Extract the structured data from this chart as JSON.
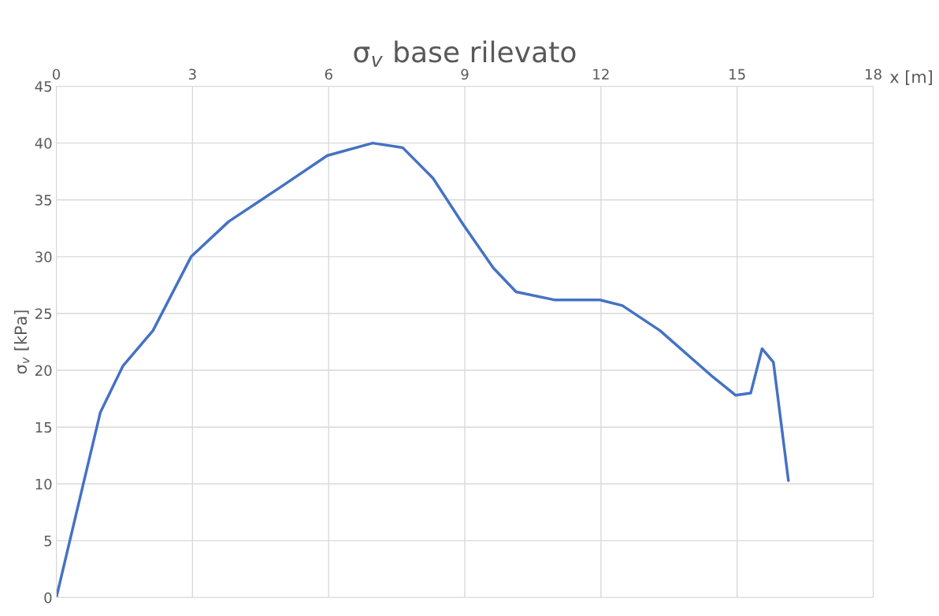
{
  "chart_data": {
    "type": "line",
    "title": "σ$_{v}$ base rilevato",
    "xlabel": "x [m]",
    "ylabel": "σ$_{v}$ [kPa]",
    "x": [
      0,
      0.6,
      0.97,
      1.47,
      2.13,
      2.97,
      3.8,
      4.97,
      5.97,
      6.97,
      7.63,
      8.3,
      8.97,
      9.63,
      10.13,
      10.97,
      11.97,
      12.47,
      13.3,
      14.47,
      14.97,
      15.3,
      15.55,
      15.8,
      16.13
    ],
    "series": [
      {
        "color": "#4472c4",
        "values": [
          0,
          10.1,
          16.3,
          20.4,
          23.5,
          30,
          33.1,
          36.2,
          38.9,
          40.0,
          39.6,
          36.9,
          32.8,
          29.0,
          26.9,
          26.2,
          26.2,
          25.7,
          23.5,
          19.4,
          17.8,
          18.0,
          21.9,
          20.7,
          10.3
        ]
      }
    ],
    "xlim": [
      0,
      18
    ],
    "xticks": [
      0,
      3,
      6,
      9,
      12,
      15,
      18
    ],
    "ylim": [
      0,
      45
    ],
    "yticks": [
      0,
      5,
      10,
      15,
      20,
      25,
      30,
      35,
      40,
      45
    ],
    "grid": true,
    "marker": "none",
    "line_style": "solid"
  }
}
